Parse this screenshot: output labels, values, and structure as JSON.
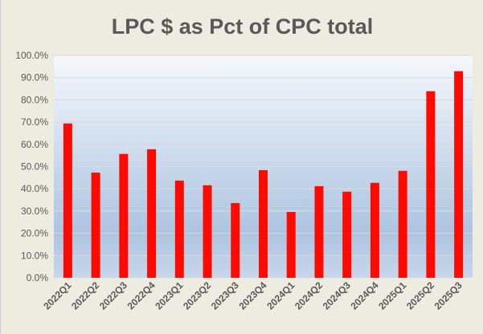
{
  "chart_data": {
    "type": "bar",
    "title": "LPC $ as Pct of CPC total",
    "xlabel": "",
    "ylabel": "",
    "ylim": [
      0,
      100
    ],
    "yticks": [
      "0.0%",
      "10.0%",
      "20.0%",
      "30.0%",
      "40.0%",
      "50.0%",
      "60.0%",
      "70.0%",
      "80.0%",
      "90.0%",
      "100.0%"
    ],
    "grid": true,
    "legend": "none",
    "categories": [
      "2022Q1",
      "2022Q2",
      "2022Q3",
      "2022Q4",
      "2023Q1",
      "2023Q2",
      "2023Q3",
      "2023Q4",
      "2024Q1",
      "2024Q2",
      "2024Q3",
      "2024Q4",
      "2025Q1",
      "2025Q2",
      "2025Q3"
    ],
    "values": [
      69.4,
      47.3,
      55.7,
      57.8,
      43.7,
      41.6,
      33.6,
      48.4,
      29.6,
      41.2,
      38.7,
      42.7,
      48.1,
      83.9,
      92.9
    ],
    "bar_color": "#FF0A00"
  }
}
